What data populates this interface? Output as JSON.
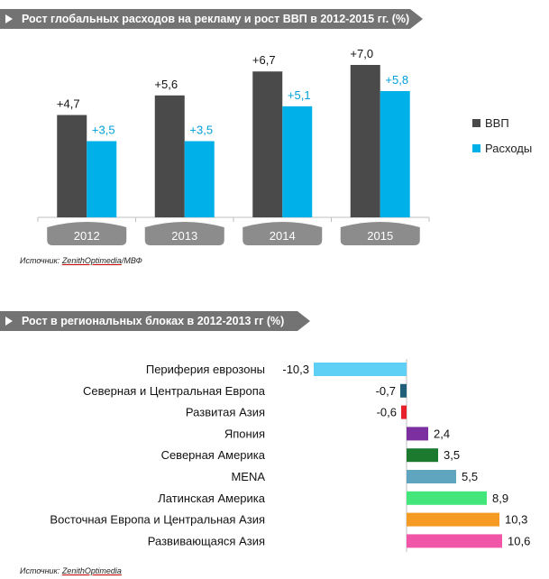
{
  "charts": {
    "top": {
      "title": "Рост глобальных расходов на рекламу и рост ВВП в 2012-2015  гг. (%)",
      "source_prefix": "Источник: ",
      "source_link": "ZenithOptimedia",
      "source_suffix": "/МВФ"
    },
    "bottom": {
      "title": "Рост в региональных блоках в 2012-2013  гг (%)",
      "source_prefix": "Источник: ",
      "source_link": "ZenithOptimedia"
    }
  },
  "chart_data": [
    {
      "type": "bar",
      "title": "Рост глобальных расходов на рекламу и рост ВВП в 2012-2015  гг. (%)",
      "categories": [
        "2012",
        "2013",
        "2014",
        "2015"
      ],
      "series": [
        {
          "name": "ВВП",
          "values": [
            4.7,
            5.6,
            6.7,
            7.0
          ],
          "labels": [
            "+4,7",
            "+5,6",
            "+6,7",
            "+7,0"
          ],
          "color": "#4a4a4a"
        },
        {
          "name": "Расходы",
          "values": [
            3.5,
            3.5,
            5.1,
            5.8
          ],
          "labels": [
            "+3,5",
            "+3,5",
            "+5,1",
            "+5,8"
          ],
          "color": "#00b0e8"
        }
      ],
      "ylim": [
        0,
        7.5
      ],
      "legend": "right"
    },
    {
      "type": "bar",
      "orientation": "horizontal",
      "title": "Рост в региональных блоках в 2012-2013  гг (%)",
      "categories": [
        "Периферия еврозоны",
        "Северная и Центральная Европа",
        "Развитая Азия",
        "Япония",
        "Северная Америка",
        "MENA",
        "Латинская Америка",
        "Восточная Европа и Центральная Азия",
        "Развивающаяся Азия"
      ],
      "values": [
        -10.3,
        -0.7,
        -0.6,
        2.4,
        3.5,
        5.5,
        8.9,
        10.3,
        10.6
      ],
      "labels": [
        "-10,3",
        "-0,7",
        "-0,6",
        "2,4",
        "3,5",
        "5,5",
        "8,9",
        "10,3",
        "10,6"
      ],
      "colors": [
        "#5ed0f5",
        "#1f5f7a",
        "#e8202a",
        "#7b2fa0",
        "#1c7a2e",
        "#5fa5bf",
        "#42e67a",
        "#f59a23",
        "#f055a8"
      ],
      "xlim": [
        -10.3,
        10.6
      ]
    }
  ]
}
